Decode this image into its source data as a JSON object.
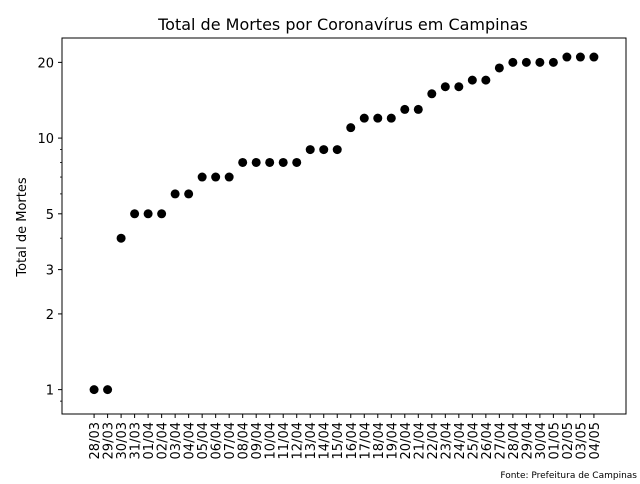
{
  "chart_data": {
    "type": "scatter",
    "title": "Total de Mortes por Coronavírus em Campinas",
    "xlabel": "",
    "ylabel": "Total de Mortes",
    "yscale": "log",
    "ylim": [
      0.8,
      25
    ],
    "yticks": [
      1,
      2,
      3,
      5,
      10,
      20
    ],
    "ytick_labels": [
      "1",
      "2",
      "3",
      "5",
      "10",
      "20"
    ],
    "grid": false,
    "marker_color": "#000000",
    "x": [
      "28/03",
      "29/03",
      "30/03",
      "31/03",
      "01/04",
      "02/04",
      "03/04",
      "04/04",
      "05/04",
      "06/04",
      "07/04",
      "08/04",
      "09/04",
      "10/04",
      "11/04",
      "12/04",
      "13/04",
      "14/04",
      "15/04",
      "16/04",
      "17/04",
      "18/04",
      "19/04",
      "20/04",
      "21/04",
      "22/04",
      "23/04",
      "24/04",
      "25/04",
      "26/04",
      "27/04",
      "28/04",
      "29/04",
      "30/04",
      "01/05",
      "02/05",
      "03/05",
      "04/05"
    ],
    "y": [
      1,
      1,
      4,
      5,
      5,
      5,
      6,
      6,
      7,
      7,
      7,
      8,
      8,
      8,
      8,
      8,
      9,
      9,
      9,
      11,
      12,
      12,
      12,
      13,
      13,
      15,
      16,
      16,
      17,
      17,
      19,
      20,
      20,
      20,
      20,
      21,
      21,
      21
    ],
    "source": "Fonte: Prefeitura de Campinas"
  }
}
